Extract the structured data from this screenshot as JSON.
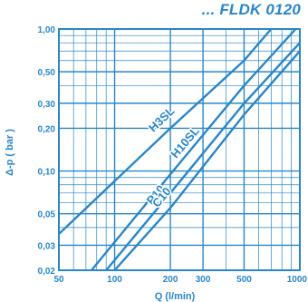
{
  "chart_data": {
    "type": "line",
    "title": "... FLDK 0120",
    "xlabel": "Q (l/min)",
    "ylabel": "Δ-p ( bar )",
    "x_scale": "log",
    "y_scale": "log",
    "xlim": [
      50,
      1000
    ],
    "ylim": [
      0.02,
      1.0
    ],
    "grid": true,
    "x_tick_labels": [
      {
        "value": 50,
        "label": "50"
      },
      {
        "value": 100,
        "label": "100"
      },
      {
        "value": 200,
        "label": "200"
      },
      {
        "value": 300,
        "label": "300"
      },
      {
        "value": 500,
        "label": "500"
      },
      {
        "value": 1000,
        "label": "1000"
      }
    ],
    "y_tick_labels": [
      {
        "value": 0.02,
        "label": "0,02"
      },
      {
        "value": 0.03,
        "label": "0,03"
      },
      {
        "value": 0.05,
        "label": "0,05"
      },
      {
        "value": 0.1,
        "label": "0,10"
      },
      {
        "value": 0.2,
        "label": "0,20"
      },
      {
        "value": 0.3,
        "label": "0,30"
      },
      {
        "value": 0.5,
        "label": "0,50"
      },
      {
        "value": 1.0,
        "label": "1,00"
      }
    ],
    "series": [
      {
        "name": "H3SL",
        "points": [
          [
            50,
            0.036
          ],
          [
            200,
            0.2
          ],
          [
            500,
            0.6
          ],
          [
            700,
            1.0
          ]
        ]
      },
      {
        "name": "H10SL",
        "points": [
          [
            75,
            0.02
          ],
          [
            200,
            0.095
          ],
          [
            500,
            0.4
          ],
          [
            950,
            1.0
          ]
        ]
      },
      {
        "name": "P10",
        "points": [
          [
            90,
            0.02
          ],
          [
            200,
            0.07
          ],
          [
            500,
            0.3
          ],
          [
            1000,
            0.8
          ]
        ]
      },
      {
        "name": "C10",
        "points": [
          [
            100,
            0.02
          ],
          [
            200,
            0.055
          ],
          [
            500,
            0.25
          ],
          [
            1000,
            0.7
          ]
        ]
      }
    ],
    "colors": {
      "ink": "#2a86c8",
      "background": "#ffffff"
    }
  }
}
